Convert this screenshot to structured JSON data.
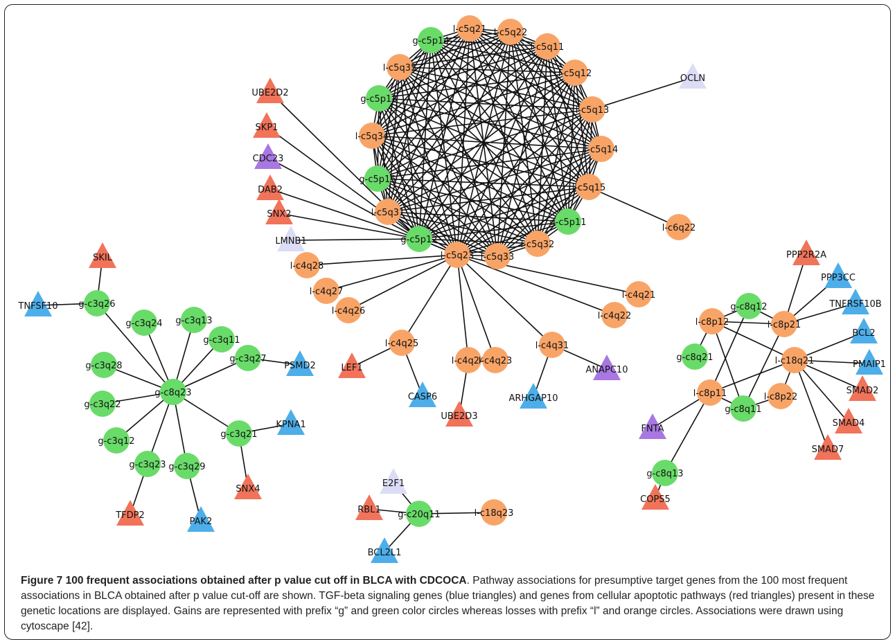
{
  "diagram": {
    "colors": {
      "gain": "#69db69",
      "loss": "#f9a467",
      "tgf_beta": "#4daee9",
      "apoptotic": "#f0735a",
      "purple": "#a877e2",
      "lavender": "#dcdcf6",
      "edge": "#111111"
    },
    "nodes": [
      {
        "id": "g-c5p14",
        "label": "g-c5p14",
        "shape": "circle",
        "color": "gain"
      },
      {
        "id": "l-c5q21",
        "label": "l-c5q21",
        "shape": "circle",
        "color": "loss"
      },
      {
        "id": "l-c5q22",
        "label": "l-c5q22",
        "shape": "circle",
        "color": "loss"
      },
      {
        "id": "l-c5q11",
        "label": "l-c5q11",
        "shape": "circle",
        "color": "loss"
      },
      {
        "id": "l-c5q12",
        "label": "l-c5q12",
        "shape": "circle",
        "color": "loss"
      },
      {
        "id": "l-c5q13",
        "label": "l-c5q13",
        "shape": "circle",
        "color": "loss"
      },
      {
        "id": "l-c5q14",
        "label": "l-c5q14",
        "shape": "circle",
        "color": "loss"
      },
      {
        "id": "l-c5q15",
        "label": "l-c5q15",
        "shape": "circle",
        "color": "loss"
      },
      {
        "id": "g-c5p11",
        "label": "g-c5p11",
        "shape": "circle",
        "color": "gain"
      },
      {
        "id": "l-c5q32",
        "label": "l-c5q32",
        "shape": "circle",
        "color": "loss"
      },
      {
        "id": "l-c5q33",
        "label": "l-c5q33",
        "shape": "circle",
        "color": "loss"
      },
      {
        "id": "l-c5q23",
        "label": "l-c5q23",
        "shape": "circle",
        "color": "loss"
      },
      {
        "id": "g-c5p12",
        "label": "g-c5p12",
        "shape": "circle",
        "color": "gain"
      },
      {
        "id": "l-c5q31",
        "label": "l-c5q31",
        "shape": "circle",
        "color": "loss"
      },
      {
        "id": "g-c5p13",
        "label": "g-c5p13",
        "shape": "circle",
        "color": "gain"
      },
      {
        "id": "l-c5q34",
        "label": "l-c5q34",
        "shape": "circle",
        "color": "loss"
      },
      {
        "id": "g-c5p15",
        "label": "g-c5p15",
        "shape": "circle",
        "color": "gain"
      },
      {
        "id": "l-c5q35",
        "label": "l-c5q35",
        "shape": "circle",
        "color": "loss"
      },
      {
        "id": "OCLN",
        "label": "OCLN",
        "shape": "triangle",
        "color": "lavender"
      },
      {
        "id": "l-c6q22",
        "label": "l-c6q22",
        "shape": "circle",
        "color": "loss"
      },
      {
        "id": "UBE2D2",
        "label": "UBE2D2",
        "shape": "triangle",
        "color": "apoptotic"
      },
      {
        "id": "SKP1",
        "label": "SKP1",
        "shape": "triangle",
        "color": "apoptotic"
      },
      {
        "id": "CDC23",
        "label": "CDC23",
        "shape": "triangle",
        "color": "purple"
      },
      {
        "id": "DAB2",
        "label": "DAB2",
        "shape": "triangle",
        "color": "apoptotic"
      },
      {
        "id": "SNX2",
        "label": "SNX2",
        "shape": "triangle",
        "color": "apoptotic"
      },
      {
        "id": "LMNB1",
        "label": "LMNB1",
        "shape": "triangle",
        "color": "lavender"
      },
      {
        "id": "l-c4q28",
        "label": "l-c4q28",
        "shape": "circle",
        "color": "loss"
      },
      {
        "id": "l-c4q27",
        "label": "l-c4q27",
        "shape": "circle",
        "color": "loss"
      },
      {
        "id": "l-c4q26",
        "label": "l-c4q26",
        "shape": "circle",
        "color": "loss"
      },
      {
        "id": "l-c4q25",
        "label": "l-c4q25",
        "shape": "circle",
        "color": "loss"
      },
      {
        "id": "l-c4q24",
        "label": "l-c4q24",
        "shape": "circle",
        "color": "loss"
      },
      {
        "id": "l-c4q23",
        "label": "l-c4q23",
        "shape": "circle",
        "color": "loss"
      },
      {
        "id": "l-c4q31",
        "label": "l-c4q31",
        "shape": "circle",
        "color": "loss"
      },
      {
        "id": "l-c4q22",
        "label": "l-c4q22",
        "shape": "circle",
        "color": "loss"
      },
      {
        "id": "l-c4q21",
        "label": "l-c4q21",
        "shape": "circle",
        "color": "loss"
      },
      {
        "id": "LEF1",
        "label": "LEF1",
        "shape": "triangle",
        "color": "apoptotic"
      },
      {
        "id": "CASP6",
        "label": "CASP6",
        "shape": "triangle",
        "color": "tgf_beta"
      },
      {
        "id": "UBE2D3",
        "label": "UBE2D3",
        "shape": "triangle",
        "color": "apoptotic"
      },
      {
        "id": "ARHGAP10",
        "label": "ARHGAP10",
        "shape": "triangle",
        "color": "tgf_beta"
      },
      {
        "id": "ANAPC10",
        "label": "ANAPC10",
        "shape": "triangle",
        "color": "purple"
      },
      {
        "id": "SKIL",
        "label": "SKIL",
        "shape": "triangle",
        "color": "apoptotic"
      },
      {
        "id": "TNFSF10",
        "label": "TNFSF10",
        "shape": "triangle",
        "color": "tgf_beta"
      },
      {
        "id": "g-c3q26",
        "label": "g-c3q26",
        "shape": "circle",
        "color": "gain"
      },
      {
        "id": "g-c3q24",
        "label": "g-c3q24",
        "shape": "circle",
        "color": "gain"
      },
      {
        "id": "g-c3q13",
        "label": "g-c3q13",
        "shape": "circle",
        "color": "gain"
      },
      {
        "id": "g-c3q11",
        "label": "g-c3q11",
        "shape": "circle",
        "color": "gain"
      },
      {
        "id": "g-c3q28",
        "label": "g-c3q28",
        "shape": "circle",
        "color": "gain"
      },
      {
        "id": "g-c3q27",
        "label": "g-c3q27",
        "shape": "circle",
        "color": "gain"
      },
      {
        "id": "PSMD2",
        "label": "PSMD2",
        "shape": "triangle",
        "color": "tgf_beta"
      },
      {
        "id": "g-c8q23",
        "label": "g-c8q23",
        "shape": "circle",
        "color": "gain"
      },
      {
        "id": "g-c3q22",
        "label": "g-c3q22",
        "shape": "circle",
        "color": "gain"
      },
      {
        "id": "g-c3q21",
        "label": "g-c3q21",
        "shape": "circle",
        "color": "gain"
      },
      {
        "id": "KPNA1",
        "label": "KPNA1",
        "shape": "triangle",
        "color": "tgf_beta"
      },
      {
        "id": "g-c3q12",
        "label": "g-c3q12",
        "shape": "circle",
        "color": "gain"
      },
      {
        "id": "g-c3q23",
        "label": "g-c3q23",
        "shape": "circle",
        "color": "gain"
      },
      {
        "id": "g-c3q29",
        "label": "g-c3q29",
        "shape": "circle",
        "color": "gain"
      },
      {
        "id": "SNX4",
        "label": "SNX4",
        "shape": "triangle",
        "color": "apoptotic"
      },
      {
        "id": "TFDP2",
        "label": "TFDP2",
        "shape": "triangle",
        "color": "apoptotic"
      },
      {
        "id": "PAK2",
        "label": "PAK2",
        "shape": "triangle",
        "color": "tgf_beta"
      },
      {
        "id": "E2F1",
        "label": "E2F1",
        "shape": "triangle",
        "color": "lavender"
      },
      {
        "id": "RBL1",
        "label": "RBL1",
        "shape": "triangle",
        "color": "apoptotic"
      },
      {
        "id": "g-c20q11",
        "label": "g-c20q11",
        "shape": "circle",
        "color": "gain"
      },
      {
        "id": "l-c18q23",
        "label": "l-c18q23",
        "shape": "circle",
        "color": "loss"
      },
      {
        "id": "BCL2L1",
        "label": "BCL2L1",
        "shape": "triangle",
        "color": "tgf_beta"
      },
      {
        "id": "PPP2R2A",
        "label": "PPP2R2A",
        "shape": "triangle",
        "color": "apoptotic"
      },
      {
        "id": "PPP3CC",
        "label": "PPP3CC",
        "shape": "triangle",
        "color": "tgf_beta"
      },
      {
        "id": "TNFRSF10B",
        "label": "TNFRSF10B",
        "shape": "triangle",
        "color": "tgf_beta"
      },
      {
        "id": "g-c8q12",
        "label": "g-c8q12",
        "shape": "circle",
        "color": "gain"
      },
      {
        "id": "l-c8p12",
        "label": "l-c8p12",
        "shape": "circle",
        "color": "loss"
      },
      {
        "id": "l-c8p21",
        "label": "l-c8p21",
        "shape": "circle",
        "color": "loss"
      },
      {
        "id": "BCL2",
        "label": "BCL2",
        "shape": "triangle",
        "color": "tgf_beta"
      },
      {
        "id": "g-c8q21",
        "label": "g-c8q21",
        "shape": "circle",
        "color": "gain"
      },
      {
        "id": "l-c18q21",
        "label": "l-c18q21",
        "shape": "circle",
        "color": "loss"
      },
      {
        "id": "PMAIP1",
        "label": "PMAIP1",
        "shape": "triangle",
        "color": "tgf_beta"
      },
      {
        "id": "l-c8p11",
        "label": "l-c8p11",
        "shape": "circle",
        "color": "loss"
      },
      {
        "id": "l-c8p22",
        "label": "l-c8p22",
        "shape": "circle",
        "color": "loss"
      },
      {
        "id": "SMAD2",
        "label": "SMAD2",
        "shape": "triangle",
        "color": "apoptotic"
      },
      {
        "id": "g-c8q11",
        "label": "g-c8q11",
        "shape": "circle",
        "color": "gain"
      },
      {
        "id": "SMAD4",
        "label": "SMAD4",
        "shape": "triangle",
        "color": "apoptotic"
      },
      {
        "id": "FNTA",
        "label": "FNTA",
        "shape": "triangle",
        "color": "purple"
      },
      {
        "id": "SMAD7",
        "label": "SMAD7",
        "shape": "triangle",
        "color": "apoptotic"
      },
      {
        "id": "g-c8q13",
        "label": "g-c8q13",
        "shape": "circle",
        "color": "gain"
      },
      {
        "id": "COPS5",
        "label": "COPS5",
        "shape": "triangle",
        "color": "apoptotic"
      }
    ],
    "edges": [
      [
        "l-c5q13",
        "OCLN"
      ],
      [
        "l-c5q15",
        "l-c6q22"
      ],
      [
        "UBE2D2",
        "g-c5p12"
      ],
      [
        "SKP1",
        "g-c5p12"
      ],
      [
        "CDC23",
        "g-c5p12"
      ],
      [
        "DAB2",
        "g-c5p12"
      ],
      [
        "SNX2",
        "g-c5p12"
      ],
      [
        "LMNB1",
        "g-c5p12"
      ],
      [
        "g-c5p15",
        "l-c5q23"
      ],
      [
        "l-c5q31",
        "l-c5q23"
      ],
      [
        "g-c5p12",
        "l-c5q23"
      ],
      [
        "l-c5q23",
        "l-c4q28"
      ],
      [
        "l-c5q23",
        "l-c4q27"
      ],
      [
        "l-c5q23",
        "l-c4q26"
      ],
      [
        "l-c5q23",
        "l-c4q25"
      ],
      [
        "l-c5q23",
        "l-c4q24"
      ],
      [
        "l-c5q23",
        "l-c4q23"
      ],
      [
        "l-c5q23",
        "l-c4q31"
      ],
      [
        "l-c5q23",
        "l-c4q22"
      ],
      [
        "l-c5q23",
        "l-c4q21"
      ],
      [
        "l-c4q25",
        "LEF1"
      ],
      [
        "l-c4q25",
        "CASP6"
      ],
      [
        "l-c4q24",
        "UBE2D3"
      ],
      [
        "l-c4q31",
        "ARHGAP10"
      ],
      [
        "l-c4q31",
        "ANAPC10"
      ],
      [
        "SKIL",
        "g-c3q26"
      ],
      [
        "TNFSF10",
        "g-c3q26"
      ],
      [
        "g-c8q23",
        "g-c3q26"
      ],
      [
        "g-c8q23",
        "g-c3q24"
      ],
      [
        "g-c8q23",
        "g-c3q13"
      ],
      [
        "g-c8q23",
        "g-c3q11"
      ],
      [
        "g-c8q23",
        "g-c3q28"
      ],
      [
        "g-c8q23",
        "g-c3q27"
      ],
      [
        "g-c8q23",
        "g-c3q22"
      ],
      [
        "g-c8q23",
        "g-c3q21"
      ],
      [
        "g-c8q23",
        "g-c3q12"
      ],
      [
        "g-c8q23",
        "g-c3q23"
      ],
      [
        "g-c8q23",
        "g-c3q29"
      ],
      [
        "g-c3q27",
        "PSMD2"
      ],
      [
        "g-c3q21",
        "KPNA1"
      ],
      [
        "g-c3q21",
        "SNX4"
      ],
      [
        "g-c3q23",
        "TFDP2"
      ],
      [
        "g-c3q29",
        "PAK2"
      ],
      [
        "E2F1",
        "g-c20q11"
      ],
      [
        "RBL1",
        "g-c20q11"
      ],
      [
        "g-c20q11",
        "l-c18q23"
      ],
      [
        "g-c20q11",
        "BCL2L1"
      ],
      [
        "l-c8p12",
        "g-c8q12"
      ],
      [
        "g-c8q12",
        "l-c8p21"
      ],
      [
        "l-c8p12",
        "l-c8p21"
      ],
      [
        "l-c8p12",
        "g-c8q21"
      ],
      [
        "l-c8p12",
        "l-c18q21"
      ],
      [
        "l-c8p12",
        "g-c8q11"
      ],
      [
        "g-c8q12",
        "l-c8p11"
      ],
      [
        "l-c8p21",
        "g-c8q11"
      ],
      [
        "l-c8p21",
        "PPP2R2A"
      ],
      [
        "l-c8p21",
        "PPP3CC"
      ],
      [
        "l-c8p21",
        "TNFRSF10B"
      ],
      [
        "l-c18q21",
        "BCL2"
      ],
      [
        "l-c18q21",
        "PMAIP1"
      ],
      [
        "l-c18q21",
        "SMAD2"
      ],
      [
        "l-c18q21",
        "SMAD4"
      ],
      [
        "l-c18q21",
        "SMAD7"
      ],
      [
        "l-c18q21",
        "l-c8p22"
      ],
      [
        "l-c18q21",
        "l-c8p11"
      ],
      [
        "l-c8p22",
        "g-c8q11"
      ],
      [
        "l-c8p11",
        "g-c8q11"
      ],
      [
        "l-c8p11",
        "FNTA"
      ],
      [
        "l-c8p11",
        "g-c8q13"
      ],
      [
        "g-c8q13",
        "COPS5"
      ]
    ],
    "clique": [
      "g-c5p14",
      "l-c5q21",
      "l-c5q22",
      "l-c5q11",
      "l-c5q12",
      "l-c5q13",
      "l-c5q14",
      "l-c5q15",
      "g-c5p11",
      "l-c5q32",
      "l-c5q33",
      "l-c5q23",
      "g-c5p12",
      "l-c5q31",
      "g-c5p15",
      "l-c5q34",
      "g-c5p13",
      "l-c5q35"
    ]
  },
  "caption": {
    "title": "Figure 7 100 frequent associations obtained after p value cut off in BLCA with CDCOCA",
    "text": ". Pathway associations for presumptive target genes from the 100 most frequent associations in BLCA obtained after p value cut-off are shown. TGF-beta signaling genes (blue triangles) and genes from cellular apoptotic pathways (red triangles) present in these genetic locations are displayed. Gains are represented with prefix “g” and green color circles whereas losses with prefix “l” and orange circles. Associations were drawn using cytoscape [42]."
  }
}
